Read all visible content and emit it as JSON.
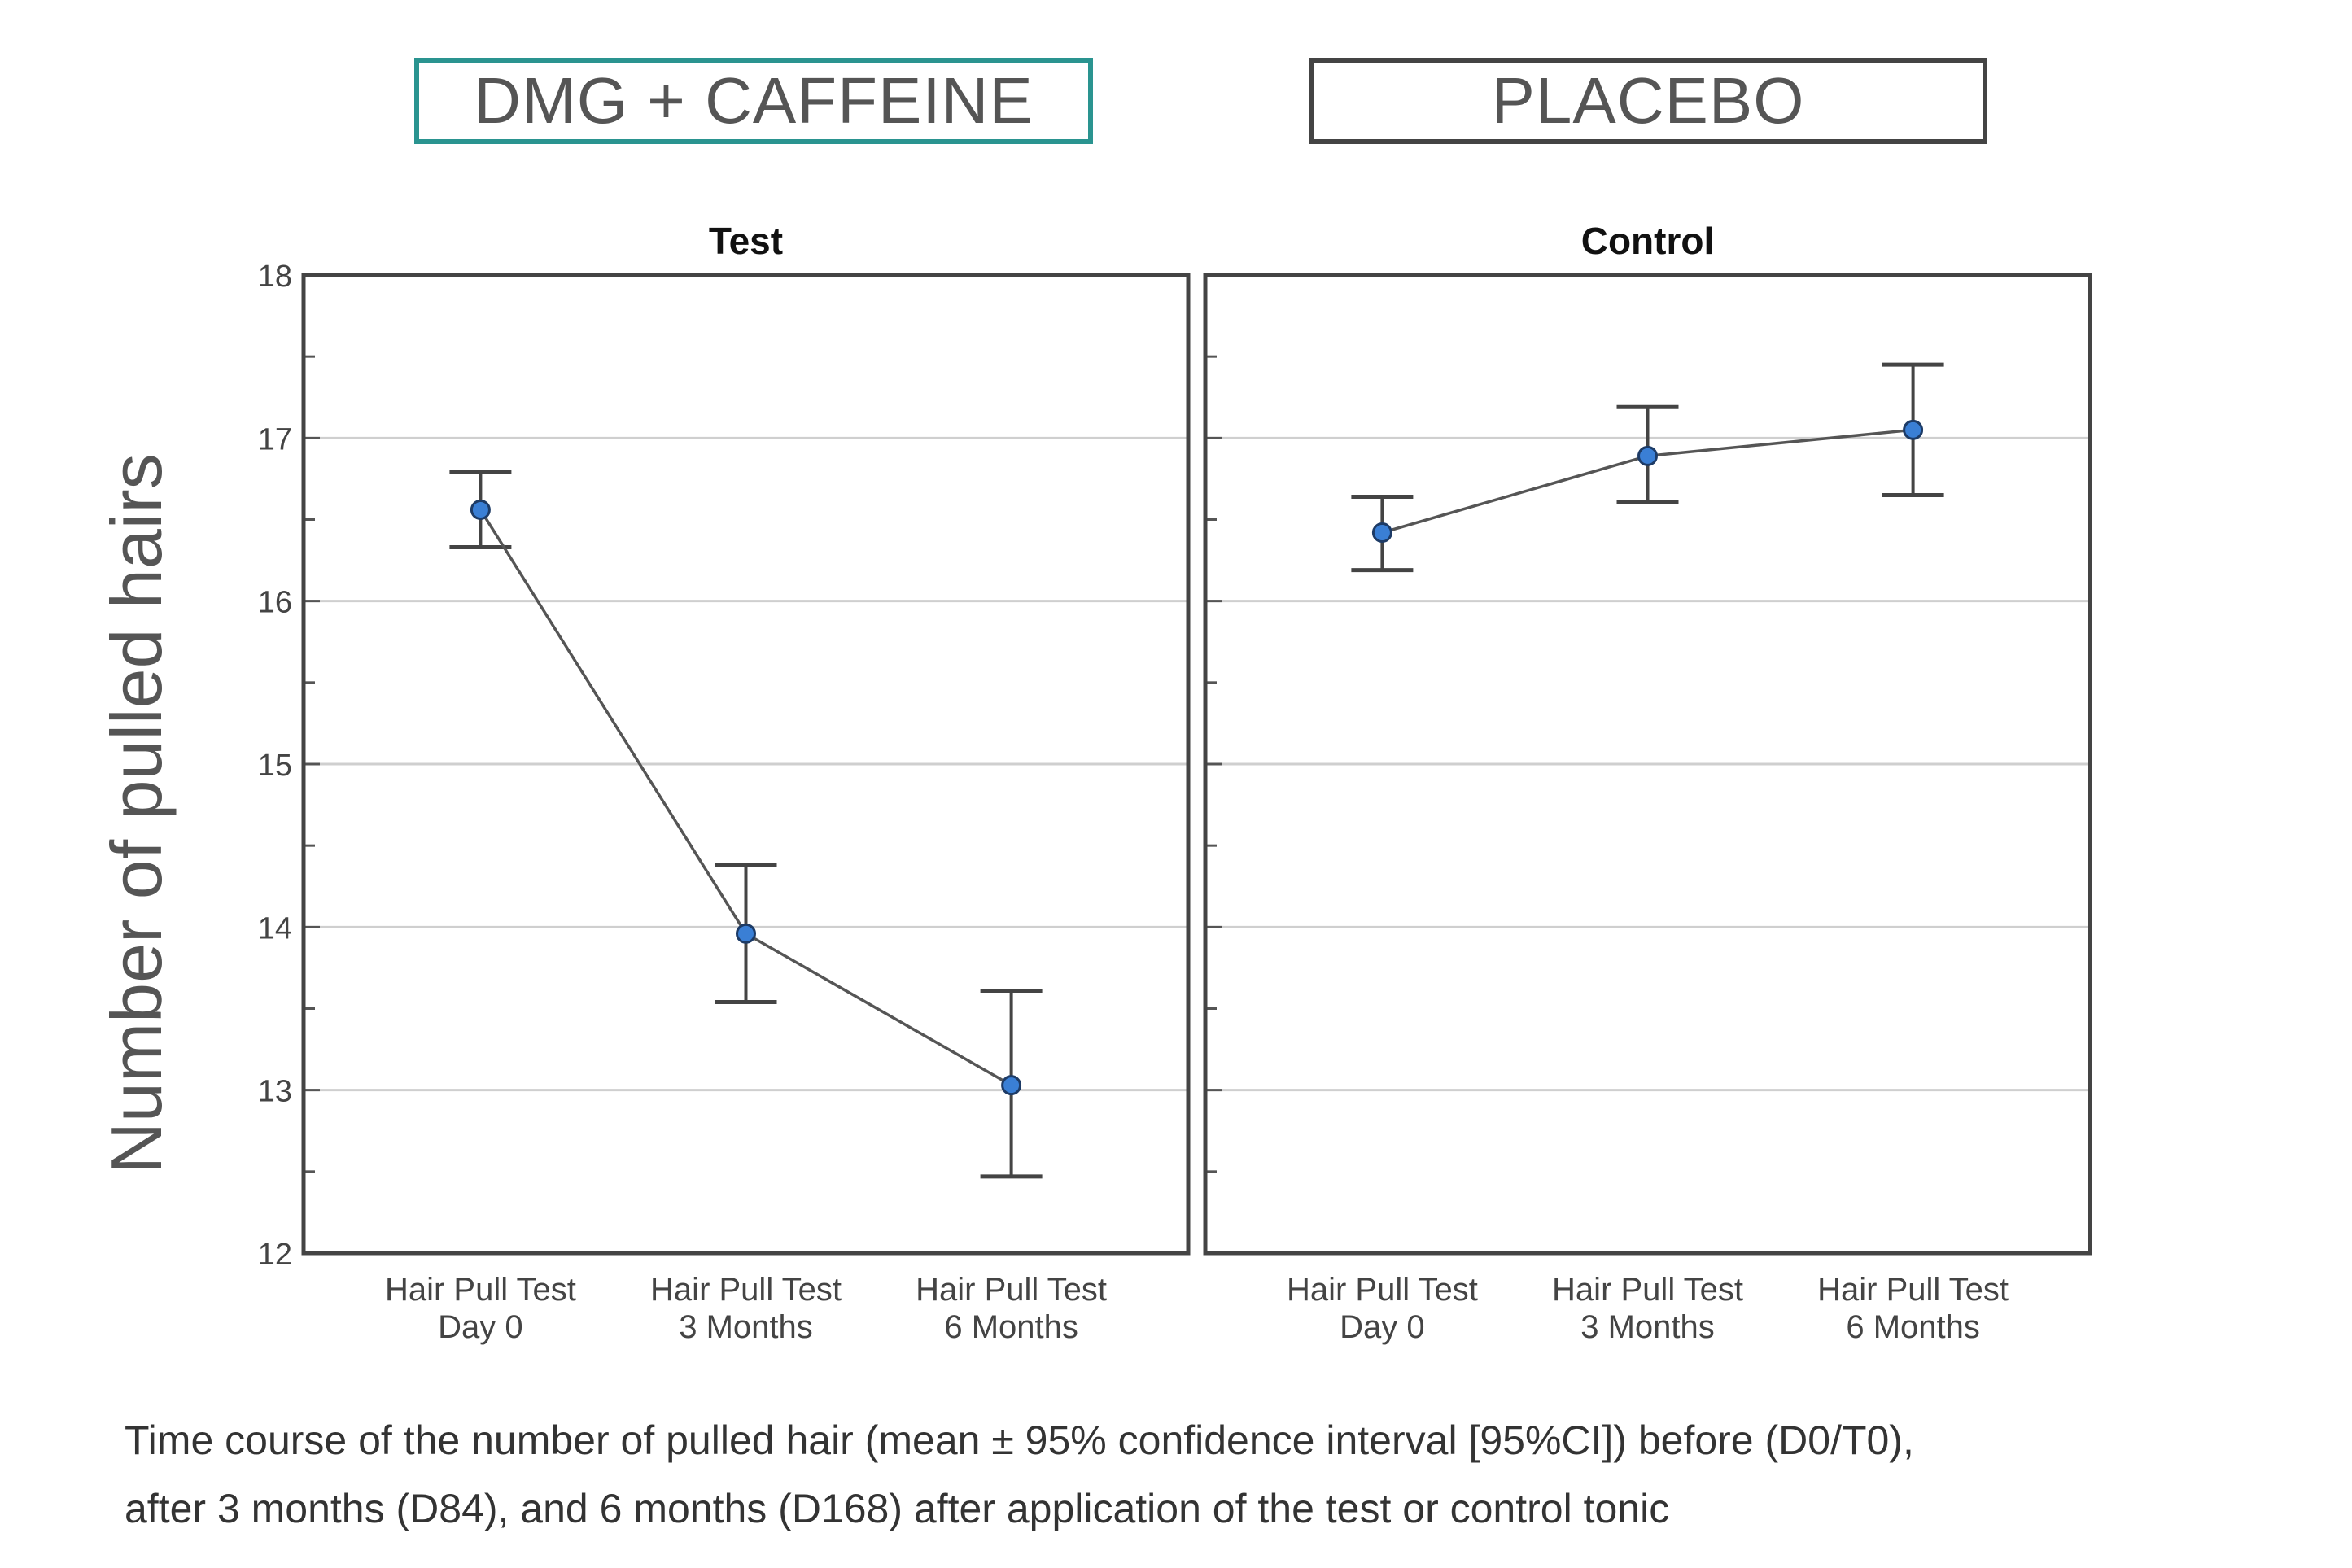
{
  "groups": {
    "test_label": "DMG + CAFFEINE",
    "control_label": "PLACEBO"
  },
  "colors": {
    "test_border": "#2a9490",
    "control_border": "#444444",
    "marker": "#3a7fd5"
  },
  "chart_data": [
    {
      "type": "line",
      "title": "Test",
      "ylabel": "Number of pulled hairs",
      "ylim": [
        12,
        18
      ],
      "yticks": [
        12,
        13,
        14,
        15,
        16,
        17,
        18
      ],
      "grid": true,
      "categories": [
        [
          "Hair Pull Test",
          "Day 0"
        ],
        [
          "Hair Pull Test",
          "3 Months"
        ],
        [
          "Hair Pull Test",
          "6 Months"
        ]
      ],
      "values": [
        16.56,
        13.96,
        13.03
      ],
      "ci_lower": [
        16.33,
        13.54,
        12.47
      ],
      "ci_upper": [
        16.79,
        14.38,
        13.61
      ]
    },
    {
      "type": "line",
      "title": "Control",
      "ylim": [
        12,
        18
      ],
      "grid": true,
      "categories": [
        [
          "Hair Pull Test",
          "Day 0"
        ],
        [
          "Hair Pull Test",
          "3 Months"
        ],
        [
          "Hair Pull Test",
          "6 Months"
        ]
      ],
      "values": [
        16.42,
        16.89,
        17.05
      ],
      "ci_lower": [
        16.19,
        16.61,
        16.65
      ],
      "ci_upper": [
        16.64,
        17.19,
        17.45
      ]
    }
  ],
  "caption": [
    "Time course of the number of pulled hair (mean ± 95% confidence interval [95%CI]) before (D0/T0),",
    "after 3 months (D84), and 6 months (D168) after application of the test or control tonic"
  ]
}
